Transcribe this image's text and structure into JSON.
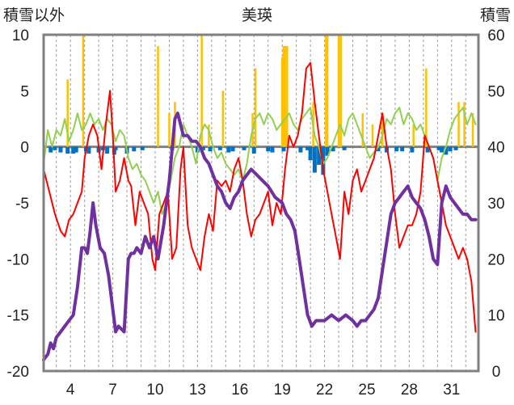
{
  "chart_data": {
    "type": "line",
    "title": "美瑛",
    "left_axis_label": "積雪以外",
    "right_axis_label": "積雪",
    "ylim_left": [
      -20,
      10
    ],
    "ylim_right": [
      0,
      60
    ],
    "yticks_left": [
      "10",
      "5",
      "0",
      "-5",
      "-10",
      "-15",
      "-20"
    ],
    "yticks_right": [
      "60",
      "50",
      "40",
      "30",
      "20",
      "10",
      "0"
    ],
    "xlim": [
      2.1,
      32.9
    ],
    "xticks": [
      "4",
      "7",
      "10",
      "13",
      "16",
      "19",
      "22",
      "25",
      "28",
      "31"
    ],
    "grid": "vertical dashed lines at day boundaries",
    "colors": {
      "temperature_max": "#ff0000",
      "temperature_mean": "#92d050",
      "snow_depth": "#7030a0",
      "sunshine": "#ffc000",
      "precipitation": "#0070c0",
      "zero_line": "#808080",
      "frame": "#808080"
    },
    "series": [
      {
        "axis": "left",
        "style": "line",
        "x": [
          2.1,
          2.5,
          2.9,
          3.3,
          3.6,
          3.9,
          4.2,
          4.5,
          4.8,
          5.0,
          5.3,
          5.6,
          5.9,
          6.2,
          6.5,
          6.8,
          7.0,
          7.2,
          7.5,
          7.8,
          8.1,
          8.3,
          8.6,
          8.9,
          9.2,
          9.5,
          9.8,
          10.0,
          10.3,
          10.6,
          10.9,
          11.2,
          11.5,
          11.8,
          12.0,
          12.3,
          12.6,
          12.9,
          13.2,
          13.5,
          13.8,
          14.1,
          14.4,
          14.7,
          15.0,
          15.3,
          15.6,
          15.9,
          16.2,
          16.5,
          16.8,
          17.1,
          17.4,
          17.7,
          18.0,
          18.3,
          18.6,
          18.9,
          19.2,
          19.5,
          19.8,
          20.1,
          20.4,
          20.7,
          21.0,
          21.3,
          21.6,
          21.9,
          22.2,
          22.5,
          22.8,
          23.1,
          23.4,
          23.7,
          24.0,
          24.3,
          24.6,
          24.9,
          25.2,
          25.5,
          25.8,
          26.1,
          26.4,
          26.7,
          27.0,
          27.3,
          27.6,
          27.9,
          28.2,
          28.5,
          28.8,
          29.1,
          29.4,
          29.7,
          30.0,
          30.3,
          30.6,
          30.9,
          31.2,
          31.5,
          31.8,
          32.1,
          32.4,
          32.7
        ],
        "y": [
          -2,
          -4,
          -6,
          -7.5,
          -8,
          -6.5,
          -6,
          -5,
          -4,
          -1,
          1,
          2,
          1,
          -2,
          2,
          5,
          1,
          -4,
          -3,
          -1,
          -3,
          -3.5,
          -7,
          -4,
          -5,
          -6,
          -10,
          -11,
          -6,
          -5,
          -4,
          -10,
          -9,
          -2,
          0,
          -7,
          -9,
          -10,
          -11,
          -8,
          -6,
          -7.5,
          -3,
          -3.5,
          -3,
          -4,
          -2,
          -1,
          -3,
          -6,
          -8,
          -6.5,
          -6,
          -5,
          -4,
          -7,
          -5,
          -6,
          -2,
          1,
          0,
          1,
          3,
          7,
          7.5,
          4,
          1,
          -2,
          -4,
          -6,
          -8,
          -10,
          -4,
          -6,
          -3,
          -2,
          -4,
          -3,
          -2,
          -1,
          1,
          3,
          0,
          -2,
          -6,
          -9,
          -8,
          -7,
          -7,
          -6,
          -4,
          1,
          0,
          -1,
          -3,
          -5,
          -7,
          -8,
          -9,
          -10,
          -9,
          -10,
          -12,
          -16.5
        ]
      },
      {
        "axis": "left",
        "style": "line",
        "x": [
          2.1,
          2.4,
          2.7,
          3.0,
          3.3,
          3.6,
          3.9,
          4.2,
          4.5,
          4.8,
          5.1,
          5.4,
          5.7,
          6.0,
          6.3,
          6.6,
          6.9,
          7.2,
          7.5,
          7.8,
          8.1,
          8.4,
          8.7,
          9.0,
          9.3,
          9.6,
          9.9,
          10.2,
          10.5,
          10.8,
          11.1,
          11.4,
          11.7,
          12.0,
          12.3,
          12.6,
          12.9,
          13.2,
          13.5,
          13.8,
          14.1,
          14.4,
          14.7,
          15.0,
          15.3,
          15.6,
          15.9,
          16.2,
          16.5,
          16.8,
          17.1,
          17.4,
          17.7,
          18.0,
          18.3,
          18.6,
          18.9,
          19.2,
          19.5,
          19.8,
          20.1,
          20.4,
          20.7,
          21.0,
          21.3,
          21.6,
          21.9,
          22.2,
          22.5,
          22.8,
          23.1,
          23.4,
          23.7,
          24.0,
          24.3,
          24.6,
          24.9,
          25.2,
          25.5,
          25.8,
          26.1,
          26.4,
          26.7,
          27.0,
          27.3,
          27.6,
          27.9,
          28.2,
          28.5,
          28.8,
          29.1,
          29.4,
          29.7,
          30.0,
          30.3,
          30.6,
          30.9,
          31.2,
          31.5,
          31.8,
          32.1,
          32.4,
          32.7
        ],
        "y": [
          -1.5,
          1.5,
          0,
          1.5,
          1,
          2.5,
          0.5,
          1.5,
          3,
          1.5,
          2,
          3,
          2,
          2.5,
          1.5,
          2.5,
          2,
          0.5,
          1.5,
          1,
          -1,
          -2,
          -1.5,
          -2.5,
          -3,
          -4,
          -5,
          -4,
          -6,
          -5,
          -3,
          -1,
          0,
          2,
          1,
          0,
          -1.5,
          1,
          2,
          1.5,
          0,
          -1,
          -0.5,
          -1.5,
          -2,
          -2.5,
          -2,
          -3,
          -1.5,
          1,
          2.5,
          3,
          2,
          3,
          2.5,
          1.5,
          2,
          2.5,
          3,
          2,
          1.5,
          2.5,
          3,
          3.5,
          1,
          0,
          -1.5,
          -1,
          0,
          1,
          2,
          1,
          2.5,
          3,
          2,
          1,
          0,
          -1,
          -0.5,
          0,
          1,
          2.5,
          2,
          3,
          3.5,
          2,
          3,
          2.5,
          1.5,
          2,
          1,
          0,
          -1,
          -3,
          -1,
          0,
          1.5,
          2.5,
          3,
          3.5,
          2,
          3,
          2
        ]
      },
      {
        "axis": "right",
        "style": "line",
        "x": [
          2.1,
          2.4,
          2.6,
          2.8,
          3.0,
          3.3,
          3.6,
          3.9,
          4.2,
          4.5,
          4.8,
          5.0,
          5.2,
          5.4,
          5.6,
          5.8,
          6.1,
          6.4,
          6.7,
          7.0,
          7.2,
          7.4,
          7.8,
          8.1,
          8.3,
          8.5,
          8.7,
          9.0,
          9.3,
          9.6,
          9.9,
          10.2,
          10.6,
          11.0,
          11.4,
          11.6,
          11.8,
          12.0,
          12.3,
          12.6,
          12.9,
          13.2,
          13.5,
          13.8,
          14.1,
          14.4,
          14.7,
          15.0,
          15.3,
          15.6,
          15.9,
          16.2,
          16.5,
          16.8,
          17.2,
          17.6,
          18.0,
          18.5,
          19.0,
          19.3,
          19.6,
          19.9,
          20.2,
          20.5,
          20.8,
          21.1,
          21.4,
          21.7,
          22.0,
          22.5,
          23.0,
          23.5,
          24.0,
          24.3,
          24.6,
          24.9,
          25.2,
          25.5,
          25.8,
          26.1,
          26.4,
          26.7,
          27.0,
          27.3,
          27.6,
          27.9,
          28.2,
          28.5,
          28.8,
          29.1,
          29.4,
          29.7,
          30.0,
          30.3,
          30.6,
          30.9,
          31.2,
          31.5,
          31.8,
          32.1,
          32.4,
          32.7
        ],
        "y": [
          2,
          3,
          5,
          4,
          6,
          7,
          8,
          9,
          10,
          15,
          22,
          22,
          21,
          25,
          30,
          26,
          22,
          21,
          17,
          11,
          7,
          8,
          7,
          20,
          21,
          21,
          22,
          21,
          24,
          22,
          24,
          20,
          26,
          34,
          45,
          46,
          44,
          42,
          42,
          41,
          41,
          40,
          38,
          37,
          35,
          33,
          32,
          30,
          29,
          31,
          32,
          34,
          35,
          36,
          35,
          34,
          33,
          31,
          30,
          28,
          27,
          25,
          20,
          15,
          10,
          8,
          9,
          9,
          9,
          10,
          9,
          10,
          9,
          8,
          9,
          9,
          10,
          11,
          13,
          18,
          23,
          28,
          30,
          31,
          32,
          33,
          31,
          30,
          29,
          27,
          24,
          20,
          19,
          30,
          33,
          31,
          30,
          29,
          28,
          28,
          27,
          27
        ]
      },
      {
        "axis": "left",
        "style": "bars",
        "x": [
          3.8,
          4.9,
          10.2,
          11.0,
          11.4,
          13.3,
          13.8,
          14.8,
          16.9,
          17.1,
          19.0,
          19.1,
          19.2,
          19.35,
          21.2,
          22.1,
          22.2,
          23.0,
          23.15,
          24.7,
          25.4,
          26.1,
          28.3,
          29.2,
          31.5,
          31.9,
          32.5
        ],
        "y": [
          6,
          10,
          9,
          3,
          4,
          10,
          2,
          5,
          3,
          7,
          8,
          9,
          9,
          9,
          4,
          10,
          10,
          10,
          10,
          3,
          2,
          3,
          2,
          7,
          4,
          4,
          3
        ]
      },
      {
        "axis": "left",
        "style": "bars",
        "x": [
          2.6,
          2.9,
          3.3,
          3.8,
          4.2,
          4.4,
          5.1,
          5.3,
          6.0,
          6.3,
          6.6,
          7.1,
          7.2,
          8.0,
          8.5,
          9.1,
          11.2,
          13.0,
          13.4,
          13.9,
          14.6,
          15.2,
          15.5,
          16.3,
          17.0,
          18.0,
          18.3,
          19.1,
          20.3,
          20.8,
          21.0,
          21.3,
          21.6,
          21.9,
          22.2,
          22.6,
          23.4,
          25.8,
          26.4,
          27.1,
          27.5,
          28.2,
          29.3,
          30.1,
          30.3,
          30.6,
          30.9,
          31.3
        ],
        "y": [
          -0.5,
          -0.3,
          -0.5,
          -0.6,
          -0.6,
          -0.5,
          -0.4,
          -0.6,
          -0.5,
          -0.3,
          -0.6,
          -0.7,
          -0.3,
          -0.6,
          -0.4,
          -0.3,
          -0.3,
          -0.5,
          -0.3,
          -0.4,
          -0.3,
          -0.5,
          -0.4,
          -0.3,
          -0.6,
          -0.4,
          -0.5,
          -0.4,
          -0.5,
          -0.3,
          -1.2,
          -2.3,
          -1.6,
          -2.5,
          -0.8,
          -0.4,
          -0.3,
          -0.4,
          -0.5,
          -0.4,
          -0.4,
          -0.5,
          -0.5,
          -0.3,
          -0.5,
          -0.7,
          -0.4,
          -0.3
        ]
      }
    ]
  }
}
